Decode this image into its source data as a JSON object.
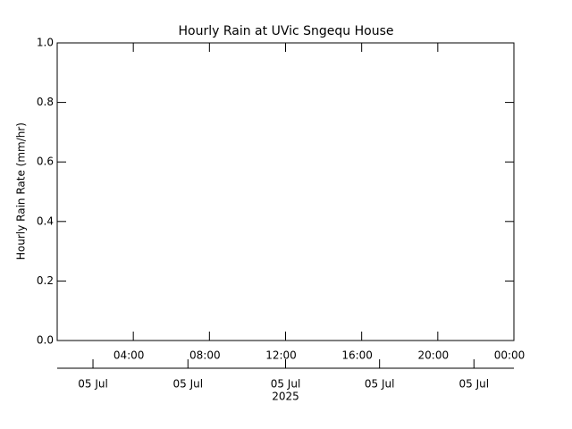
{
  "chart_data": {
    "type": "line",
    "title": "Hourly Rain at UVic Sngequ House",
    "y_label": "Hourly Rain Rate (mm/hr)",
    "ylim": [
      0,
      1
    ],
    "yticks": [
      {
        "value": 0,
        "label": "0.0"
      },
      {
        "value": 0.2,
        "label": "0.2"
      },
      {
        "value": 0.4,
        "label": "0.4"
      },
      {
        "value": 0.6,
        "label": "0.6"
      },
      {
        "value": 0.8,
        "label": "0.8"
      },
      {
        "value": 1,
        "label": "1.0"
      }
    ],
    "xlim": [
      0,
      24
    ],
    "xticks": [
      {
        "value": 4,
        "label": "04:00"
      },
      {
        "value": 8,
        "label": "08:00"
      },
      {
        "value": 12,
        "label": "12:00"
      },
      {
        "value": 16,
        "label": "16:00"
      },
      {
        "value": 20,
        "label": "20:00"
      },
      {
        "value": 24,
        "label": "00:00"
      }
    ],
    "x2ticks": [
      {
        "value": 1.88,
        "label": "05 Jul"
      },
      {
        "value": 6.87,
        "label": "05 Jul"
      },
      {
        "value": 12,
        "label": "05 Jul"
      },
      {
        "value": 16.94,
        "label": "05 Jul"
      },
      {
        "value": 21.9,
        "label": "05 Jul"
      }
    ],
    "x2_year_label": "2025"
  }
}
